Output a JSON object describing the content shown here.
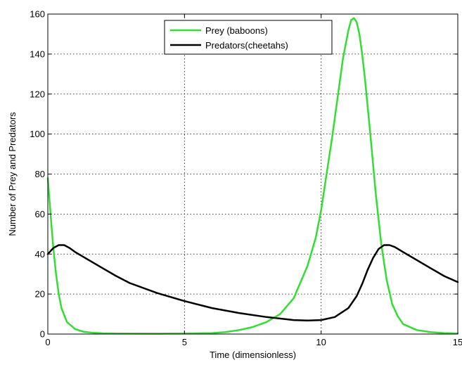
{
  "chart_data": {
    "type": "line",
    "title": "",
    "xlabel": "Time (dimensionless)",
    "ylabel": "Number of Prey and Predators",
    "xlim": [
      0,
      15
    ],
    "ylim": [
      0,
      160
    ],
    "xticks": [
      0,
      5,
      10,
      15
    ],
    "yticks": [
      0,
      20,
      40,
      60,
      80,
      100,
      120,
      140,
      160
    ],
    "grid": true,
    "legend_position": "top-center",
    "series": [
      {
        "name": "Prey (baboons)",
        "color": "#33dd33",
        "x": [
          0,
          0.1,
          0.2,
          0.3,
          0.4,
          0.5,
          0.7,
          1.0,
          1.3,
          1.6,
          2.0,
          2.5,
          3,
          4,
          5,
          6,
          6.5,
          7,
          7.5,
          8,
          8.5,
          9,
          9.5,
          9.8,
          10.0,
          10.2,
          10.4,
          10.6,
          10.8,
          11.0,
          11.1,
          11.2,
          11.3,
          11.4,
          11.5,
          11.6,
          11.8,
          12.0,
          12.2,
          12.4,
          12.6,
          12.8,
          13.0,
          13.5,
          14.0,
          14.5,
          15.0
        ],
        "y": [
          78,
          60,
          43,
          30,
          20,
          13,
          6,
          2.5,
          1.2,
          0.7,
          0.4,
          0.3,
          0.25,
          0.2,
          0.3,
          0.5,
          1,
          2,
          3.5,
          6,
          10,
          18,
          34,
          48,
          62,
          80,
          98,
          118,
          138,
          152,
          157,
          158,
          156,
          150,
          140,
          128,
          100,
          70,
          45,
          27,
          15,
          9,
          5,
          2,
          1,
          0.5,
          0.3
        ]
      },
      {
        "name": "Predators(cheetahs)",
        "color": "#000000",
        "x": [
          0,
          0.2,
          0.4,
          0.6,
          0.8,
          1.0,
          1.5,
          2.0,
          2.5,
          3.0,
          4.0,
          5.0,
          6.0,
          7.0,
          8.0,
          9.0,
          9.5,
          10.0,
          10.5,
          11.0,
          11.3,
          11.5,
          11.7,
          11.9,
          12.1,
          12.3,
          12.5,
          12.7,
          13.0,
          13.5,
          14.0,
          14.5,
          15.0
        ],
        "y": [
          40,
          43,
          44.5,
          44.5,
          43,
          41,
          37,
          33,
          29,
          25.5,
          20.5,
          16.5,
          13,
          10.5,
          8.5,
          7,
          6.8,
          7,
          8.5,
          13,
          19,
          25,
          32,
          38,
          42.5,
          44.5,
          44.5,
          43.5,
          41,
          37,
          33,
          29,
          26
        ]
      }
    ]
  }
}
